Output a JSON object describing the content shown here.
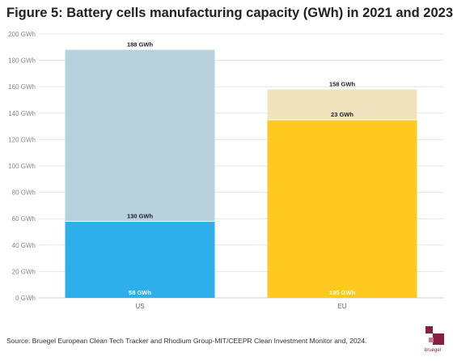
{
  "chart_data": {
    "type": "bar",
    "title": "Figure 5: Battery cells manufacturing capacity (GWh) in 2021 and 2023",
    "categories": [
      "US",
      "EU"
    ],
    "ylim": [
      0,
      200
    ],
    "y_ticks": [
      0,
      20,
      40,
      60,
      80,
      100,
      120,
      140,
      160,
      180,
      200
    ],
    "y_unit": "GWh",
    "grid": true,
    "bars": [
      {
        "category": "US",
        "base_value": 58,
        "total_value": 188,
        "increase_value": 130,
        "base_label": "58 GWh",
        "increase_label": "130 GWh",
        "total_label": "188 GWh",
        "base_color": "#2eaeea",
        "increase_color": "#b7d1dd"
      },
      {
        "category": "EU",
        "base_value": 135,
        "total_value": 158,
        "increase_value": 23,
        "base_label": "135 GWh",
        "increase_label": "23 GWh",
        "total_label": "158 GWh",
        "base_color": "#ffc91f",
        "increase_color": "#efe3bd"
      }
    ]
  },
  "source": "Source: Bruegel European Clean Tech Tracker and Rhodium Group-MIT/CEEPR Clean Investment Monitor and, 2024.",
  "logo": {
    "text": "bruegel",
    "color": "#8a1f3d"
  }
}
